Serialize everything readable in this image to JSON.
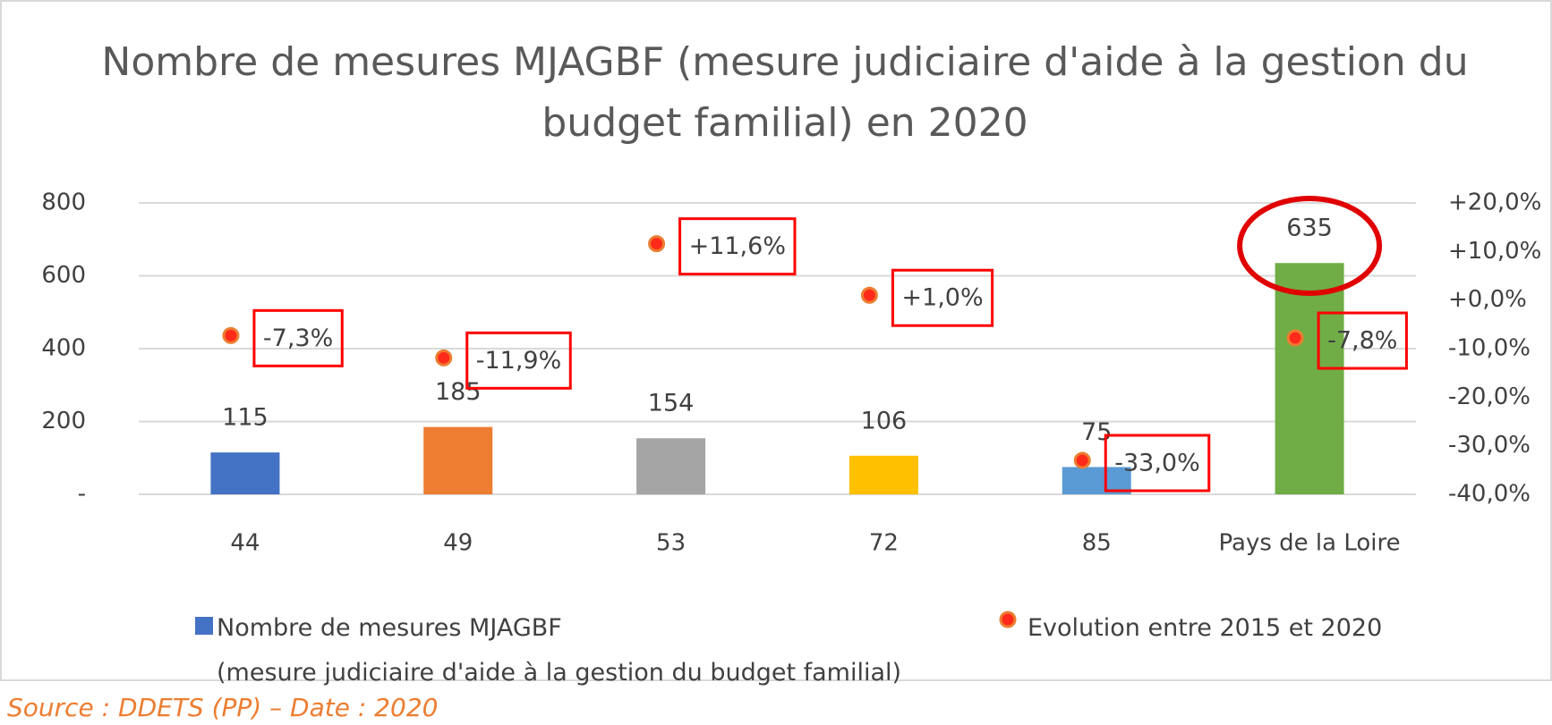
{
  "chart_data": {
    "type": "bar",
    "title": "Nombre de mesures MJAGBF (mesure judiciaire d'aide à la gestion du",
    "title_line2": "budget familial) en 2020",
    "categories": [
      "44",
      "49",
      "53",
      "72",
      "85",
      "Pays de la Loire"
    ],
    "series": [
      {
        "name": "Nombre de mesures MJAGBF\n(mesure judiciaire d'aide à la gestion du budget familial)",
        "type": "bar",
        "colors": [
          "#4472c4",
          "#ed7d31",
          "#a5a5a5",
          "#ffc000",
          "#5b9bd5",
          "#70ad47"
        ],
        "values": [
          115,
          185,
          154,
          106,
          75,
          635
        ]
      },
      {
        "name": "Evolution entre 2015 et 2020",
        "type": "scatter",
        "axis": "y2",
        "color": "#ff2a1a",
        "values": [
          -7.3,
          -11.9,
          11.6,
          1.0,
          -33.0,
          -7.8
        ],
        "value_labels": [
          "-7,3%",
          "-11,9%",
          "+11,6%",
          "+1,0%",
          "-33,0%",
          "-7,8%"
        ]
      }
    ],
    "ylim": [
      0,
      800
    ],
    "yticks": [
      {
        "value": 0,
        "label": "-"
      },
      200,
      400,
      600,
      800
    ],
    "y2lim": [
      -40,
      20
    ],
    "y2ticks": [
      {
        "value": -40,
        "label": "-40,0%"
      },
      {
        "value": -30,
        "label": "-30,0%"
      },
      {
        "value": -20,
        "label": "-20,0%"
      },
      {
        "value": -10,
        "label": "-10,0%"
      },
      {
        "value": 0,
        "label": "+0,0%"
      },
      {
        "value": 10,
        "label": "+10,0%"
      },
      {
        "value": 20,
        "label": "+20,0%"
      }
    ],
    "grid": true,
    "source": "Source : DDETS (PP) – Date : 2020"
  }
}
